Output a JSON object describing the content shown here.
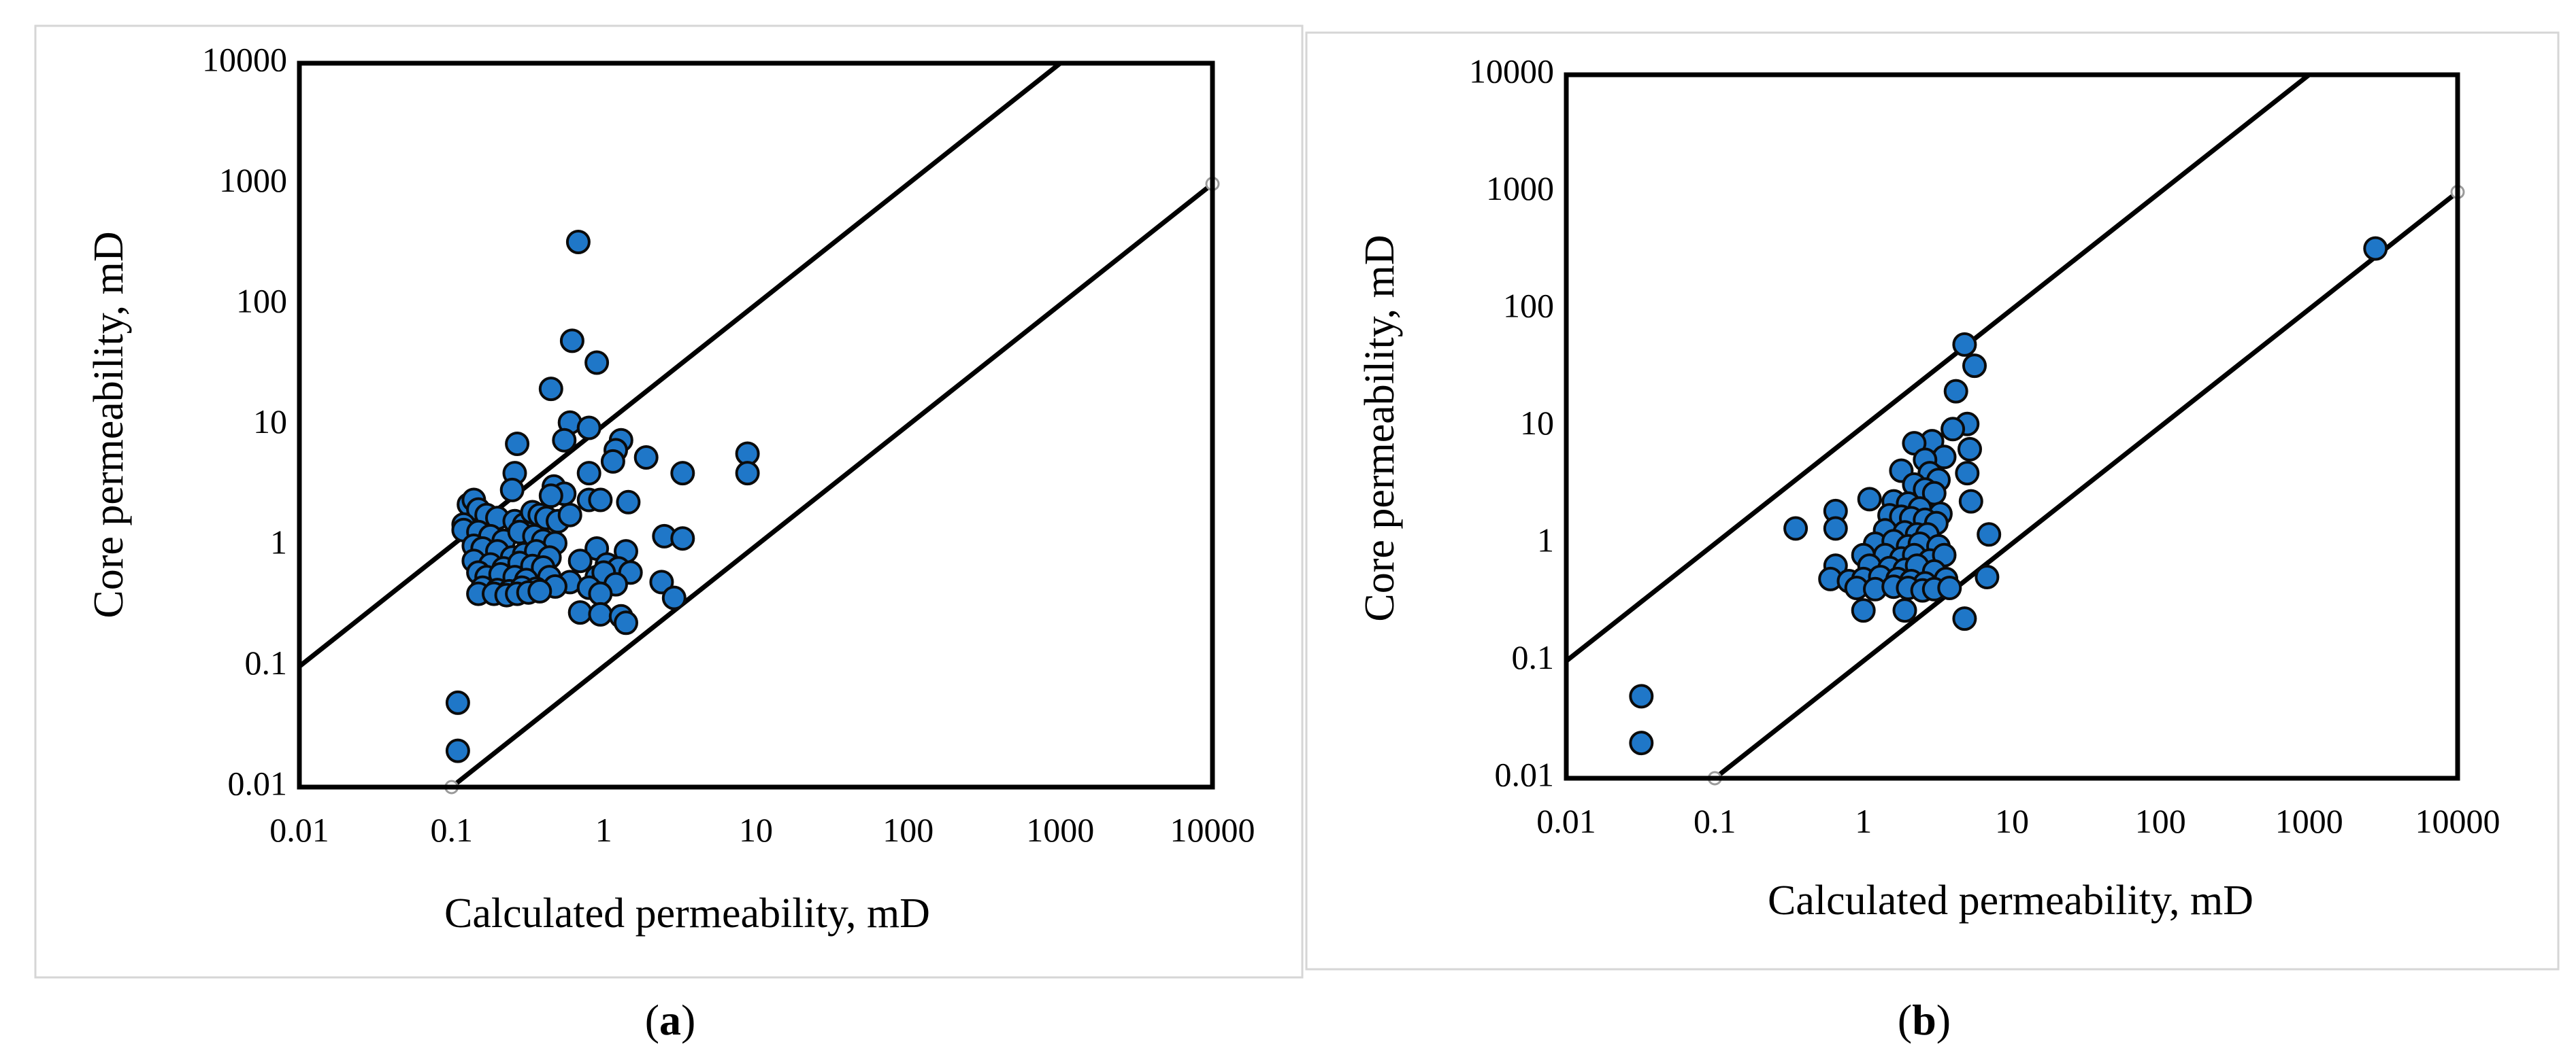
{
  "chart_data": [
    {
      "type": "scatter",
      "panel_label": "(a)",
      "caption": {
        "open": "(",
        "letter": "a",
        "close": ")"
      },
      "xlabel": "Calculated permeability,  mD",
      "ylabel": "Core permeability,  mD",
      "x_scale": "log",
      "y_scale": "log",
      "xlim": [
        0.01,
        10000
      ],
      "ylim": [
        0.01,
        10000
      ],
      "x_ticks": [
        "0.01",
        "0.1",
        "1",
        "10",
        "100",
        "1000",
        "10000"
      ],
      "y_ticks": [
        "0.01",
        "0.1",
        "1",
        "10",
        "100",
        "1000",
        "10000"
      ],
      "bound_lines": [
        {
          "name": "upper bound",
          "points": [
            [
              0.01,
              0.1
            ],
            [
              1000,
              10000
            ]
          ]
        },
        {
          "name": "lower bound",
          "points": [
            [
              0.1,
              0.01
            ],
            [
              10000,
              1000
            ]
          ]
        }
      ],
      "points": [
        [
          0.68,
          330
        ],
        [
          0.62,
          50
        ],
        [
          0.9,
          33
        ],
        [
          0.45,
          20
        ],
        [
          0.6,
          10.5
        ],
        [
          0.8,
          9.5
        ],
        [
          1.3,
          7.5
        ],
        [
          0.55,
          7.5
        ],
        [
          0.27,
          7.0
        ],
        [
          1.2,
          6.2
        ],
        [
          8.8,
          5.8
        ],
        [
          1.15,
          5.0
        ],
        [
          1.9,
          5.4
        ],
        [
          0.8,
          4.0
        ],
        [
          3.3,
          4.0
        ],
        [
          8.8,
          4.0
        ],
        [
          0.26,
          4.0
        ],
        [
          0.47,
          3.1
        ],
        [
          0.55,
          2.7
        ],
        [
          0.25,
          2.9
        ],
        [
          0.45,
          2.6
        ],
        [
          0.8,
          2.4
        ],
        [
          0.95,
          2.4
        ],
        [
          1.45,
          2.3
        ],
        [
          0.13,
          2.2
        ],
        [
          0.14,
          2.4
        ],
        [
          0.15,
          2.0
        ],
        [
          0.17,
          1.8
        ],
        [
          0.2,
          1.7
        ],
        [
          0.26,
          1.6
        ],
        [
          0.3,
          1.5
        ],
        [
          0.34,
          1.9
        ],
        [
          0.38,
          1.8
        ],
        [
          0.42,
          1.7
        ],
        [
          0.5,
          1.6
        ],
        [
          0.6,
          1.8
        ],
        [
          0.12,
          1.5
        ],
        [
          0.12,
          1.35
        ],
        [
          0.15,
          1.3
        ],
        [
          0.18,
          1.2
        ],
        [
          0.22,
          1.1
        ],
        [
          0.28,
          1.3
        ],
        [
          0.35,
          1.2
        ],
        [
          0.4,
          1.1
        ],
        [
          0.48,
          1.05
        ],
        [
          2.5,
          1.2
        ],
        [
          3.3,
          1.15
        ],
        [
          0.14,
          1.0
        ],
        [
          0.16,
          0.95
        ],
        [
          0.2,
          0.9
        ],
        [
          0.25,
          0.8
        ],
        [
          0.3,
          0.85
        ],
        [
          0.36,
          0.9
        ],
        [
          0.44,
          0.8
        ],
        [
          0.9,
          0.95
        ],
        [
          1.4,
          0.9
        ],
        [
          0.14,
          0.75
        ],
        [
          0.18,
          0.7
        ],
        [
          0.22,
          0.65
        ],
        [
          0.28,
          0.72
        ],
        [
          0.34,
          0.68
        ],
        [
          0.4,
          0.66
        ],
        [
          0.7,
          0.75
        ],
        [
          1.05,
          0.7
        ],
        [
          1.25,
          0.65
        ],
        [
          1.5,
          0.6
        ],
        [
          0.15,
          0.6
        ],
        [
          0.17,
          0.55
        ],
        [
          0.21,
          0.58
        ],
        [
          0.26,
          0.55
        ],
        [
          0.31,
          0.52
        ],
        [
          0.44,
          0.55
        ],
        [
          0.6,
          0.5
        ],
        [
          0.9,
          0.55
        ],
        [
          1.0,
          0.6
        ],
        [
          2.4,
          0.5
        ],
        [
          0.16,
          0.45
        ],
        [
          0.2,
          0.43
        ],
        [
          0.24,
          0.42
        ],
        [
          0.29,
          0.45
        ],
        [
          0.36,
          0.44
        ],
        [
          0.48,
          0.46
        ],
        [
          0.8,
          0.45
        ],
        [
          1.2,
          0.48
        ],
        [
          0.15,
          0.4
        ],
        [
          0.19,
          0.4
        ],
        [
          0.23,
          0.39
        ],
        [
          0.27,
          0.4
        ],
        [
          0.32,
          0.41
        ],
        [
          0.38,
          0.42
        ],
        [
          0.95,
          0.4
        ],
        [
          2.9,
          0.37
        ],
        [
          0.7,
          0.28
        ],
        [
          0.95,
          0.27
        ],
        [
          1.3,
          0.26
        ],
        [
          1.4,
          0.23
        ],
        [
          0.11,
          0.05
        ],
        [
          0.11,
          0.02
        ]
      ]
    },
    {
      "type": "scatter",
      "panel_label": "(b)",
      "caption": {
        "open": "(",
        "letter": "b",
        "close": ")"
      },
      "xlabel": "Calculated permeability,  mD",
      "ylabel": "Core permeability,  mD",
      "x_scale": "log",
      "y_scale": "log",
      "xlim": [
        0.01,
        10000
      ],
      "ylim": [
        0.01,
        10000
      ],
      "x_ticks": [
        "0.01",
        "0.1",
        "1",
        "10",
        "100",
        "1000",
        "10000"
      ],
      "y_ticks": [
        "0.01",
        "0.1",
        "1",
        "10",
        "100",
        "1000",
        "10000"
      ],
      "bound_lines": [
        {
          "name": "upper bound",
          "points": [
            [
              0.01,
              0.1
            ],
            [
              1000,
              10000
            ]
          ]
        },
        {
          "name": "lower bound",
          "points": [
            [
              0.1,
              0.01
            ],
            [
              10000,
              1000
            ]
          ]
        }
      ],
      "points": [
        [
          2800,
          330
        ],
        [
          4.8,
          50
        ],
        [
          5.6,
          33
        ],
        [
          4.2,
          20
        ],
        [
          5.0,
          10.5
        ],
        [
          4.0,
          9.5
        ],
        [
          2.9,
          7.5
        ],
        [
          2.2,
          7.2
        ],
        [
          5.2,
          6.4
        ],
        [
          3.5,
          5.5
        ],
        [
          2.6,
          5.2
        ],
        [
          1.8,
          4.2
        ],
        [
          2.8,
          4.0
        ],
        [
          5.0,
          4.0
        ],
        [
          3.2,
          3.5
        ],
        [
          2.2,
          3.2
        ],
        [
          2.6,
          2.9
        ],
        [
          3.0,
          2.7
        ],
        [
          5.3,
          2.3
        ],
        [
          1.1,
          2.4
        ],
        [
          1.6,
          2.3
        ],
        [
          2.0,
          2.2
        ],
        [
          2.4,
          2.0
        ],
        [
          3.3,
          1.8
        ],
        [
          0.65,
          1.9
        ],
        [
          1.5,
          1.75
        ],
        [
          1.8,
          1.7
        ],
        [
          2.1,
          1.65
        ],
        [
          2.6,
          1.6
        ],
        [
          3.1,
          1.5
        ],
        [
          0.35,
          1.35
        ],
        [
          0.65,
          1.35
        ],
        [
          1.4,
          1.3
        ],
        [
          1.9,
          1.25
        ],
        [
          2.3,
          1.2
        ],
        [
          2.7,
          1.2
        ],
        [
          7.0,
          1.2
        ],
        [
          1.2,
          1.0
        ],
        [
          1.6,
          1.05
        ],
        [
          2.0,
          0.95
        ],
        [
          2.4,
          1.0
        ],
        [
          3.2,
          0.95
        ],
        [
          1.0,
          0.8
        ],
        [
          1.4,
          0.8
        ],
        [
          1.8,
          0.75
        ],
        [
          2.2,
          0.8
        ],
        [
          2.8,
          0.72
        ],
        [
          3.5,
          0.8
        ],
        [
          0.65,
          0.65
        ],
        [
          1.1,
          0.65
        ],
        [
          1.5,
          0.62
        ],
        [
          1.9,
          0.6
        ],
        [
          2.3,
          0.65
        ],
        [
          3.0,
          0.58
        ],
        [
          0.6,
          0.5
        ],
        [
          0.8,
          0.48
        ],
        [
          1.0,
          0.5
        ],
        [
          1.3,
          0.52
        ],
        [
          1.7,
          0.5
        ],
        [
          2.1,
          0.48
        ],
        [
          2.6,
          0.46
        ],
        [
          3.6,
          0.5
        ],
        [
          6.8,
          0.52
        ],
        [
          0.9,
          0.42
        ],
        [
          1.2,
          0.41
        ],
        [
          1.6,
          0.43
        ],
        [
          2.0,
          0.42
        ],
        [
          2.5,
          0.4
        ],
        [
          3.0,
          0.41
        ],
        [
          3.8,
          0.42
        ],
        [
          1.0,
          0.27
        ],
        [
          1.9,
          0.27
        ],
        [
          4.8,
          0.23
        ],
        [
          0.032,
          0.05
        ],
        [
          0.032,
          0.02
        ]
      ]
    }
  ]
}
